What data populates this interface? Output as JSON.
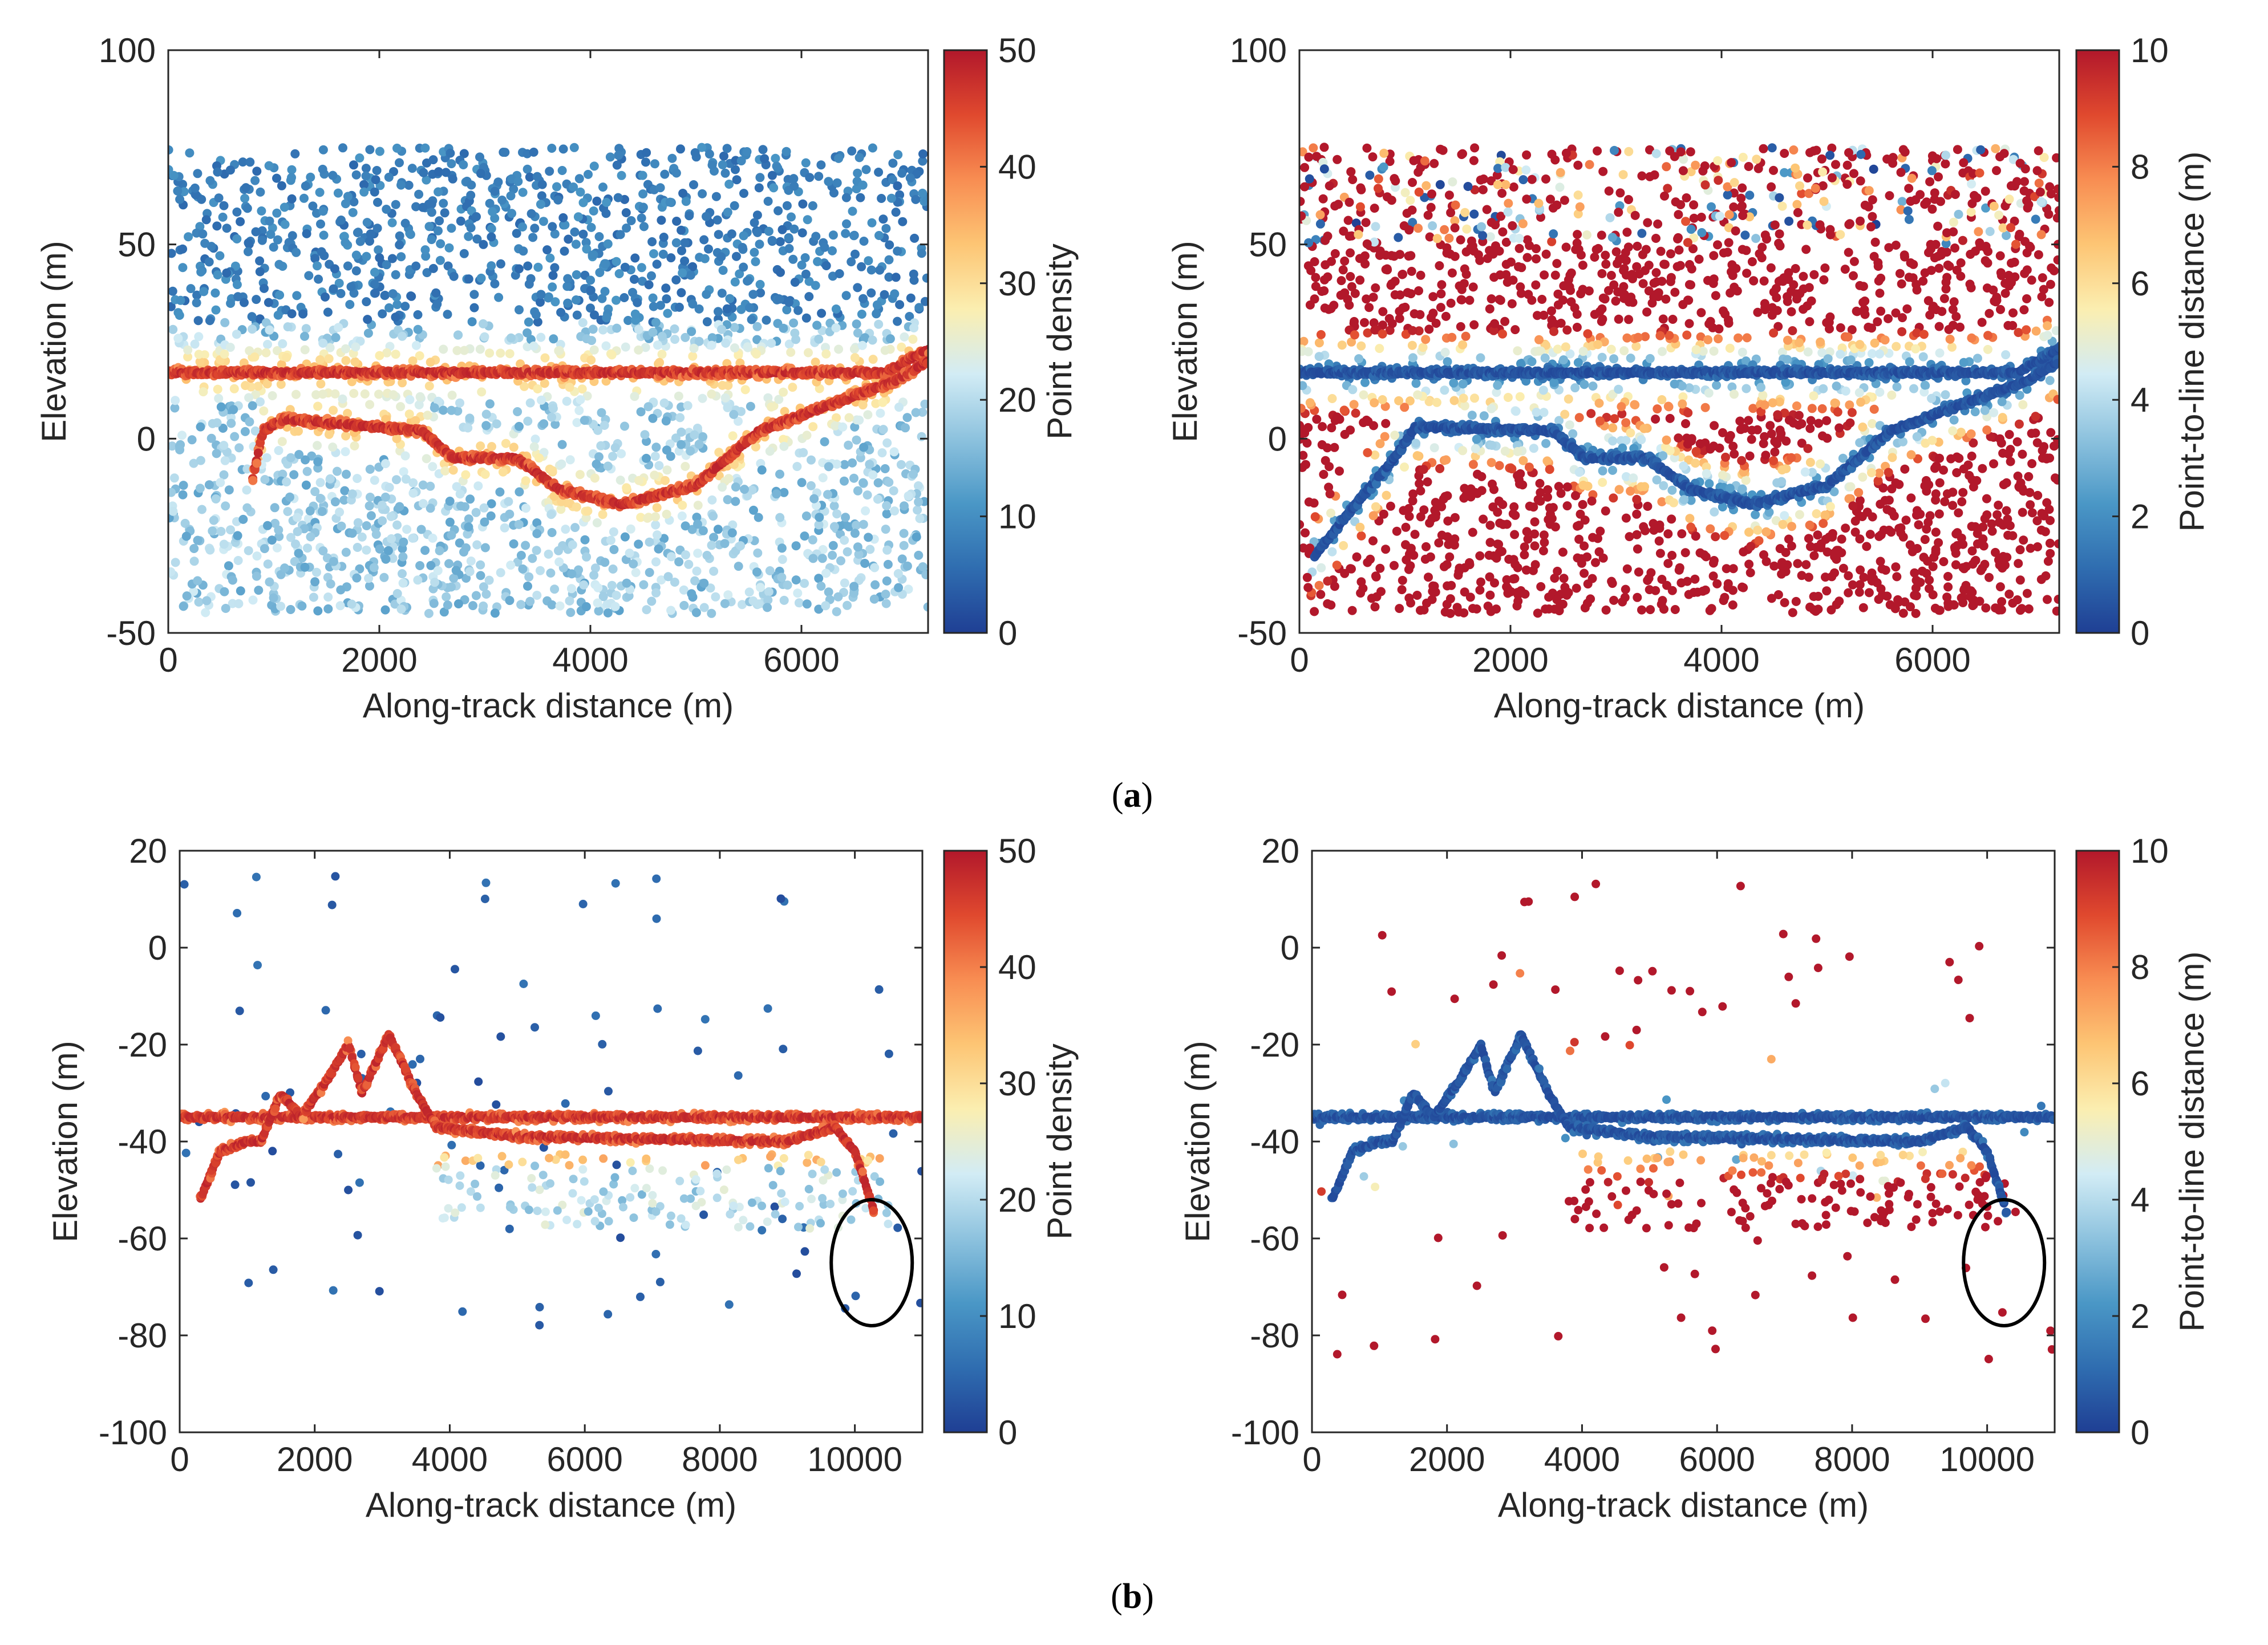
{
  "figure": {
    "panel_labels": [
      {
        "open": "(",
        "letter": "a",
        "close": ")"
      },
      {
        "open": "(",
        "letter": "b",
        "close": ")"
      }
    ]
  },
  "colormap": [
    "#1f3f94",
    "#2f6db0",
    "#4a97c6",
    "#8dc2de",
    "#d2ecf5",
    "#fbeeb0",
    "#fdc574",
    "#f88d52",
    "#e0492e",
    "#b2182b"
  ],
  "ellipse_color": "#000000",
  "chart_data": [
    {
      "type": "scatter",
      "id": "a-left",
      "panel": "a",
      "color_by": "density",
      "xlabel": "Along-track distance (m)",
      "ylabel": "Elevation (m)",
      "xlim": [
        0,
        7200
      ],
      "ylim": [
        -50,
        100
      ],
      "xticks": [
        0,
        2000,
        4000,
        6000
      ],
      "xtick_labels": [
        "0",
        "2000",
        "4000",
        "6000"
      ],
      "yticks": [
        -50,
        0,
        50,
        100
      ],
      "ytick_labels": [
        "-50",
        "0",
        "50",
        "100"
      ],
      "colorbar": {
        "label": "Point density",
        "min": 0,
        "max": 50,
        "ticks": [
          0,
          10,
          20,
          30,
          40,
          50
        ],
        "tick_labels": [
          "0",
          "10",
          "20",
          "30",
          "40",
          "50"
        ]
      },
      "noise": {
        "x_range": [
          0,
          7200
        ],
        "y_range": [
          -45,
          75
        ],
        "count": 2600
      },
      "surfaces": [
        {
          "name": "water surface",
          "x": [
            0,
            6800,
            7000,
            7200
          ],
          "y": [
            17,
            17,
            20,
            23
          ]
        },
        {
          "name": "bottom profile",
          "x": [
            800,
            900,
            1100,
            2400,
            2700,
            3300,
            3700,
            4300,
            5000,
            5600,
            6400,
            6900,
            7200
          ],
          "y": [
            -10,
            2,
            5,
            2,
            -5,
            -5,
            -13,
            -17,
            -12,
            2,
            10,
            15,
            20
          ]
        }
      ],
      "highlight": null
    },
    {
      "type": "scatter",
      "id": "a-right",
      "panel": "a",
      "color_by": "distance",
      "xlabel": "Along-track distance (m)",
      "ylabel": "Elevation (m)",
      "xlim": [
        0,
        7200
      ],
      "ylim": [
        -50,
        100
      ],
      "xticks": [
        0,
        2000,
        4000,
        6000
      ],
      "xtick_labels": [
        "0",
        "2000",
        "4000",
        "6000"
      ],
      "yticks": [
        -50,
        0,
        50,
        100
      ],
      "ytick_labels": [
        "-50",
        "0",
        "50",
        "100"
      ],
      "colorbar": {
        "label": "Point-to-line distance (m)",
        "min": 0,
        "max": 10,
        "ticks": [
          0,
          2,
          4,
          6,
          8,
          10
        ],
        "tick_labels": [
          "0",
          "2",
          "4",
          "6",
          "8",
          "10"
        ]
      },
      "noise": {
        "x_range": [
          0,
          7200
        ],
        "y_range": [
          -45,
          75
        ],
        "count": 2600
      },
      "surfaces": [
        {
          "name": "water surface",
          "x": [
            0,
            6800,
            7000,
            7200
          ],
          "y": [
            17,
            17,
            20,
            23
          ]
        },
        {
          "name": "bottom profile",
          "x": [
            150,
            500,
            900,
            1100,
            2400,
            2700,
            3300,
            3700,
            4300,
            5000,
            5600,
            6400,
            6900,
            7200
          ],
          "y": [
            -30,
            -18,
            -5,
            3,
            2,
            -5,
            -5,
            -13,
            -17,
            -12,
            2,
            10,
            15,
            20
          ]
        }
      ],
      "highlight": null
    },
    {
      "type": "scatter",
      "id": "b-left",
      "panel": "b",
      "color_by": "density",
      "xlabel": "Along-track distance (m)",
      "ylabel": "Elevation (m)",
      "xlim": [
        0,
        11000
      ],
      "ylim": [
        -100,
        20
      ],
      "xticks": [
        0,
        2000,
        4000,
        6000,
        8000,
        10000
      ],
      "xtick_labels": [
        "0",
        "2000",
        "4000",
        "6000",
        "8000",
        "10000"
      ],
      "yticks": [
        -100,
        -80,
        -60,
        -40,
        -20,
        0,
        20
      ],
      "ytick_labels": [
        "-100",
        "-80",
        "-60",
        "-40",
        "-20",
        "0",
        "20"
      ],
      "colorbar": {
        "label": "Point density",
        "min": 0,
        "max": 50,
        "ticks": [
          0,
          10,
          20,
          30,
          40,
          50
        ],
        "tick_labels": [
          "0",
          "10",
          "20",
          "30",
          "40",
          "50"
        ]
      },
      "noise": {
        "x_range": [
          0,
          11000
        ],
        "y_range": [
          -86,
          16
        ],
        "count": 90
      },
      "subsurface_band": {
        "x_range": [
          3800,
          10500
        ],
        "y_range": [
          -58,
          -42
        ],
        "count": 180
      },
      "surfaces": [
        {
          "name": "water surface",
          "x": [
            0,
            11000
          ],
          "y": [
            -35,
            -35
          ]
        },
        {
          "name": "bottom profile",
          "x": [
            300,
            600,
            1000,
            1200,
            1500,
            1800,
            2200,
            2500,
            2700,
            3100,
            3500,
            3800,
            5000,
            9000,
            9700,
            10000,
            10300
          ],
          "y": [
            -52,
            -42,
            -40,
            -40,
            -30,
            -35,
            -27,
            -20,
            -30,
            -18,
            -30,
            -37,
            -39,
            -40,
            -37,
            -42,
            -55
          ]
        }
      ],
      "highlight": {
        "shape": "ellipse",
        "cx": 10250,
        "cy": -65,
        "rx": 600,
        "ry": 13
      }
    },
    {
      "type": "scatter",
      "id": "b-right",
      "panel": "b",
      "color_by": "distance",
      "xlabel": "Along-track distance (m)",
      "ylabel": "Elevation (m)",
      "xlim": [
        0,
        11000
      ],
      "ylim": [
        -100,
        20
      ],
      "xticks": [
        0,
        2000,
        4000,
        6000,
        8000,
        10000
      ],
      "xtick_labels": [
        "0",
        "2000",
        "4000",
        "6000",
        "8000",
        "10000"
      ],
      "yticks": [
        -100,
        -80,
        -60,
        -40,
        -20,
        0,
        20
      ],
      "ytick_labels": [
        "-100",
        "-80",
        "-60",
        "-40",
        "-20",
        "0",
        "20"
      ],
      "colorbar": {
        "label": "Point-to-line distance (m)",
        "min": 0,
        "max": 10,
        "ticks": [
          0,
          2,
          4,
          6,
          8,
          10
        ],
        "tick_labels": [
          "0",
          "2",
          "4",
          "6",
          "8",
          "10"
        ]
      },
      "noise": {
        "x_range": [
          0,
          11000
        ],
        "y_range": [
          -86,
          16
        ],
        "count": 90
      },
      "subsurface_band": {
        "x_range": [
          3800,
          10500
        ],
        "y_range": [
          -58,
          -42
        ],
        "count": 180
      },
      "surfaces": [
        {
          "name": "water surface",
          "x": [
            0,
            11000
          ],
          "y": [
            -35,
            -35
          ]
        },
        {
          "name": "bottom profile",
          "x": [
            300,
            600,
            1000,
            1200,
            1500,
            1800,
            2200,
            2500,
            2700,
            3100,
            3500,
            3800,
            5000,
            9000,
            9700,
            10000,
            10300
          ],
          "y": [
            -52,
            -42,
            -40,
            -40,
            -30,
            -35,
            -27,
            -20,
            -30,
            -18,
            -30,
            -37,
            -39,
            -40,
            -37,
            -42,
            -55
          ]
        }
      ],
      "highlight": {
        "shape": "ellipse",
        "cx": 10250,
        "cy": -65,
        "rx": 600,
        "ry": 13
      }
    }
  ]
}
